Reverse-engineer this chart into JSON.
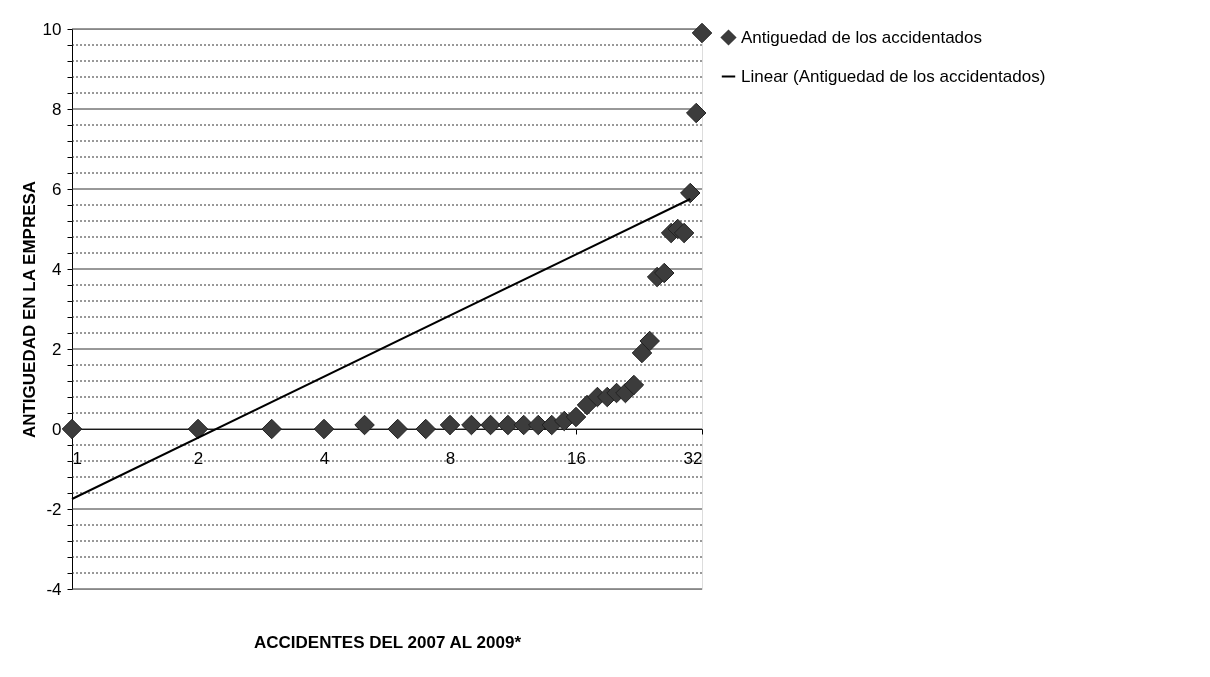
{
  "chart_data": {
    "type": "scatter",
    "xlabel": "ACCIDENTES DEL 2007 AL 2009*",
    "ylabel": "ANTIGUEDAD EN LA EMPRESA",
    "log": "x",
    "xlim": [
      1,
      32
    ],
    "xticks": [
      1,
      2,
      4,
      8,
      16,
      32
    ],
    "ylim": [
      -4,
      10
    ],
    "yticks": [
      -4,
      {
        "value": -3.6,
        "label": null
      },
      {
        "value": -3.2,
        "label": null
      },
      {
        "value": -2.8,
        "label": null
      },
      {
        "value": -2.4,
        "label": null
      },
      -2,
      {
        "value": -1.6,
        "label": null
      },
      {
        "value": -1.2,
        "label": null
      },
      {
        "value": -0.8,
        "label": null
      },
      {
        "value": -0.4,
        "label": null
      },
      0,
      {
        "value": 0.4,
        "label": null
      },
      {
        "value": 0.8,
        "label": null
      },
      {
        "value": 1.2,
        "label": null
      },
      {
        "value": 1.6,
        "label": null
      },
      2,
      {
        "value": 2.4,
        "label": null
      },
      {
        "value": 2.8,
        "label": null
      },
      {
        "value": 3.2,
        "label": null
      },
      {
        "value": 3.6,
        "label": null
      },
      4,
      {
        "value": 4.4,
        "label": null
      },
      {
        "value": 4.8,
        "label": null
      },
      {
        "value": 5.2,
        "label": null
      },
      {
        "value": 5.6,
        "label": null
      },
      6,
      {
        "value": 6.4,
        "label": null
      },
      {
        "value": 6.8,
        "label": null
      },
      {
        "value": 7.2,
        "label": null
      },
      {
        "value": 7.6,
        "label": null
      },
      8,
      {
        "value": 8.4,
        "label": null
      },
      {
        "value": 8.8,
        "label": null
      },
      {
        "value": 9.2,
        "label": null
      },
      {
        "value": 9.6,
        "label": null
      },
      10
    ],
    "grid": "y",
    "legend": "right",
    "series": [
      {
        "name": "Antiguedad de los accidentados",
        "type": "scatter",
        "marker": "diamond",
        "color": "#3c3c3c",
        "x": [
          1,
          2,
          3,
          4,
          5,
          6,
          7,
          8,
          9,
          10,
          11,
          12,
          13,
          14,
          15,
          16,
          17,
          18,
          19,
          20,
          21,
          22,
          23,
          24,
          25,
          26,
          27,
          28,
          29,
          30,
          31,
          32
        ],
        "values": [
          0,
          0,
          0,
          0,
          0.1,
          0,
          0,
          0.1,
          0.1,
          0.1,
          0.1,
          0.1,
          0.1,
          0.1,
          0.2,
          0.3,
          0.6,
          0.8,
          0.8,
          0.9,
          0.9,
          1.1,
          1.9,
          2.2,
          3.8,
          3.9,
          4.9,
          5,
          4.9,
          5.9,
          7.9,
          9.9
        ]
      },
      {
        "name": "Linear (Antiguedad de los accidentados)",
        "type": "line",
        "marker": "none",
        "line_style": "solid",
        "color": "#000000",
        "x": [
          1,
          30
        ],
        "values": [
          -1.75,
          5.75
        ]
      }
    ]
  }
}
